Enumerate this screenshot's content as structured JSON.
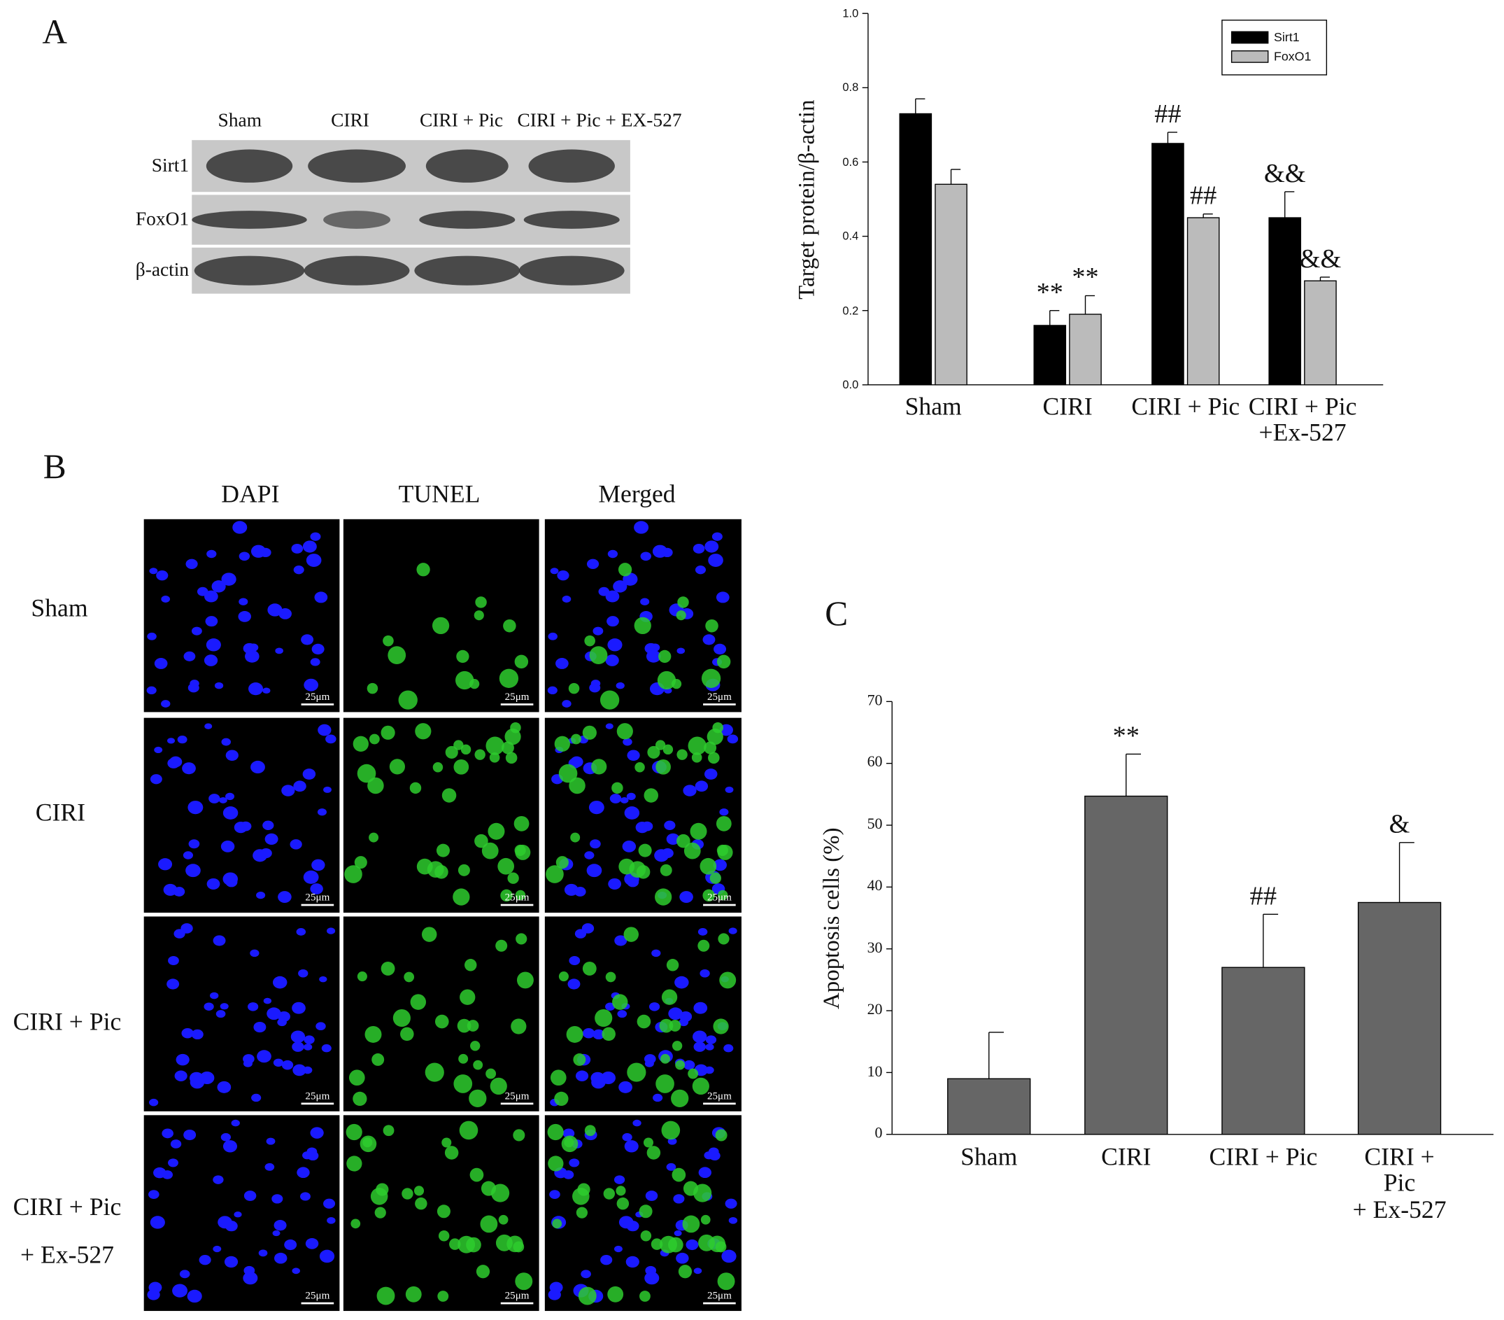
{
  "panel_labels": [
    "A",
    "B",
    "C"
  ],
  "western_blot": {
    "lanes": [
      "Sham",
      "CIRI",
      "CIRI + Pic",
      "CIRI + Pic + EX-527"
    ],
    "rows": [
      "Sirt1",
      "FoxO1",
      "β-actin"
    ]
  },
  "microscopy": {
    "columns": [
      "DAPI",
      "TUNEL",
      "Merged"
    ],
    "rows": [
      "Sham",
      "CIRI",
      "CIRI + Pic",
      "CIRI + Pic\n+ Ex-527"
    ],
    "scale_bar": "25μm"
  },
  "chart_data": [
    {
      "type": "bar",
      "ylabel": "Target protein/β-actin",
      "categories": [
        "Sham",
        "CIRI",
        "CIRI + Pic",
        "CIRI + Pic\n+Ex-527"
      ],
      "series": [
        {
          "name": "Sirt1",
          "color": "#000000",
          "values": [
            0.73,
            0.16,
            0.65,
            0.45
          ],
          "errors": [
            0.04,
            0.04,
            0.03,
            0.07
          ],
          "significance": [
            null,
            "**",
            "##",
            "&&"
          ]
        },
        {
          "name": "FoxO1",
          "color": "#bbbbbb",
          "values": [
            0.54,
            0.19,
            0.45,
            0.28
          ],
          "errors": [
            0.04,
            0.05,
            0.01,
            0.01
          ],
          "significance": [
            null,
            "**",
            "##",
            "&&"
          ]
        }
      ],
      "ylim": [
        0,
        1
      ],
      "yticks": [
        {
          "value": 0,
          "label": "0.0"
        },
        {
          "value": 0.2,
          "label": "0.2"
        },
        {
          "value": 0.4,
          "label": "0.4"
        },
        {
          "value": 0.6,
          "label": "0.6"
        },
        {
          "value": 0.8,
          "label": "0.8"
        },
        {
          "value": 1,
          "label": "1.0"
        }
      ],
      "legend": "upper right"
    },
    {
      "type": "bar",
      "ylabel": "Apoptosis cells (%)",
      "categories": [
        "Sham",
        "CIRI",
        "CIRI + Pic",
        "CIRI + Pic\n+ Ex-527"
      ],
      "series": [
        {
          "color": "#666666",
          "values": [
            9,
            54.7,
            27,
            37.5
          ],
          "errors": [
            7.5,
            6.8,
            8.6,
            9.7
          ],
          "significance": [
            null,
            "**",
            "##",
            "&"
          ]
        }
      ],
      "ylim": [
        0,
        70
      ],
      "yticks": [
        0,
        10,
        20,
        30,
        40,
        50,
        60,
        70
      ]
    }
  ]
}
